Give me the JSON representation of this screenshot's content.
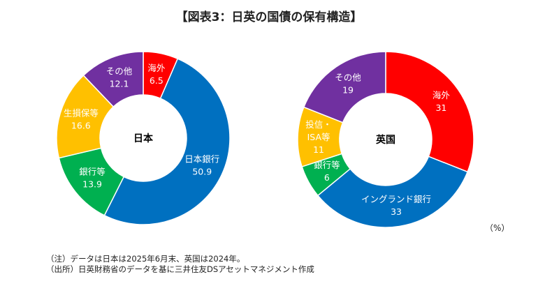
{
  "chart_data": [
    {
      "type": "pie",
      "variant": "donut",
      "center_label": "日本",
      "start": "top",
      "direction": "clockwise",
      "slices": [
        {
          "name": "海外",
          "value": 6.5,
          "color": "#FF0000"
        },
        {
          "name": "日本銀行",
          "value": 50.9,
          "color": "#0070C0"
        },
        {
          "name": "銀行等",
          "value": 13.9,
          "color": "#00B050"
        },
        {
          "name": "生損保等",
          "value": 16.6,
          "color": "#FFC000"
        },
        {
          "name": "その他",
          "value": 12.1,
          "color": "#7030A0"
        }
      ]
    },
    {
      "type": "pie",
      "variant": "donut",
      "center_label": "英国",
      "start": "top",
      "direction": "clockwise",
      "slices": [
        {
          "name": "海外",
          "value": 31,
          "color": "#FF0000"
        },
        {
          "name": "イングランド銀行",
          "value": 33,
          "color": "#0070C0"
        },
        {
          "name": "銀行等",
          "value": 6,
          "color": "#00B050"
        },
        {
          "name": "投信・\nISA等",
          "value": 11,
          "color": "#FFC000"
        },
        {
          "name": "その他",
          "value": 19,
          "color": "#7030A0"
        }
      ]
    }
  ],
  "title": "【図表3：日英の国債の保有構造】",
  "unit": "（%）",
  "notes": [
    "（注）データは日本は2025年6月末、英国は2024年。",
    "（出所）日英財務省のデータを基に三井住友DSアセットマネジメント作成"
  ]
}
